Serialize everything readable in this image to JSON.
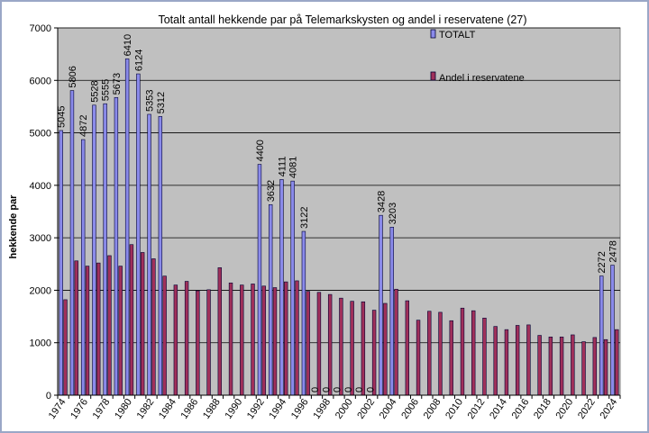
{
  "chart_data": {
    "type": "bar",
    "title": "Totalt antall  hekkende par på Telemarkskysten og andel i reservatene (27)",
    "xlabel": "",
    "ylabel": "hekkende par",
    "ylim": [
      0,
      7000
    ],
    "yticks": [
      "0",
      "1000",
      "2000",
      "3000",
      "4000",
      "5000",
      "6000",
      "7000"
    ],
    "grid": true,
    "legend_position": "top-right",
    "categories": [
      "1974",
      "1975",
      "1976",
      "1977",
      "1978",
      "1979",
      "1980",
      "1981",
      "1982",
      "1983",
      "1984",
      "1985",
      "1986",
      "1987",
      "1988",
      "1989",
      "1990",
      "1991",
      "1992",
      "1993",
      "1994",
      "1995",
      "1996",
      "1997",
      "1998",
      "1999",
      "2000",
      "2001",
      "2002",
      "2003",
      "2004",
      "2005",
      "2006",
      "2007",
      "2008",
      "2009",
      "2010",
      "2011",
      "2012",
      "2013",
      "2014",
      "2015",
      "2016",
      "2017",
      "2018",
      "2019",
      "2020",
      "2021",
      "2022",
      "2023",
      "2024"
    ],
    "x_tick_labels": [
      "1974",
      "1976",
      "1978",
      "1980",
      "1982",
      "1984",
      "1986",
      "1988",
      "1990",
      "1992",
      "1994",
      "1996",
      "1998",
      "2000",
      "2002",
      "2004",
      "2006",
      "2008",
      "2010",
      "2012",
      "2014",
      "2016",
      "2018",
      "2020",
      "2022",
      "2024"
    ],
    "series": [
      {
        "name": "TOTALT",
        "color": "#8a8aea",
        "values": [
          5045,
          5806,
          4872,
          5528,
          5555,
          5673,
          6410,
          6124,
          5353,
          5312,
          null,
          null,
          null,
          null,
          null,
          null,
          null,
          null,
          4400,
          3632,
          4111,
          4081,
          3122,
          0,
          0,
          0,
          0,
          0,
          0,
          3428,
          3203,
          null,
          null,
          null,
          null,
          null,
          null,
          null,
          null,
          null,
          null,
          null,
          null,
          null,
          null,
          null,
          null,
          null,
          null,
          2272,
          2478
        ],
        "labels": [
          "5045",
          "5806",
          "4872",
          "5528",
          "5555",
          "5673",
          "6410",
          "6124",
          "5353",
          "5312",
          null,
          null,
          null,
          null,
          null,
          null,
          null,
          null,
          "4400",
          "3632",
          "4111",
          "4081",
          "3122",
          "0",
          "0",
          "0",
          "0",
          "0",
          "0",
          "3428",
          "3203",
          null,
          null,
          null,
          null,
          null,
          null,
          null,
          null,
          null,
          null,
          null,
          null,
          null,
          null,
          null,
          null,
          null,
          null,
          "2272",
          "2478"
        ]
      },
      {
        "name": "Andel i reservatene",
        "color": "#a0305a",
        "values": [
          1820,
          2560,
          2460,
          2520,
          2660,
          2460,
          2870,
          2720,
          2600,
          2270,
          2100,
          2170,
          1990,
          2010,
          2430,
          2140,
          2100,
          2120,
          2080,
          2050,
          2160,
          2180,
          1980,
          1960,
          1920,
          1850,
          1790,
          1780,
          1620,
          1750,
          2020,
          1800,
          1430,
          1600,
          1580,
          1420,
          1660,
          1610,
          1470,
          1310,
          1250,
          1330,
          1340,
          1140,
          1110,
          1110,
          1150,
          1020,
          1100,
          1060,
          1250
        ]
      }
    ]
  }
}
